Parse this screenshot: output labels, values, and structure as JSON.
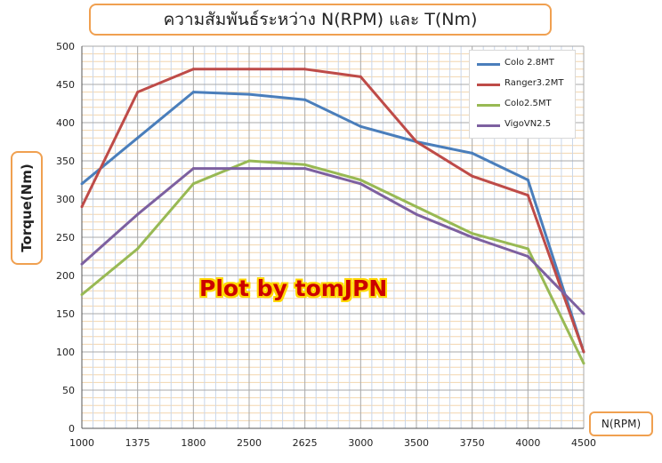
{
  "chart_data": {
    "type": "line",
    "title": "ความสัมพันธ์ระหว่าง  N(RPM)    และ  T(Nm)",
    "xlabel": "N(RPM)",
    "ylabel": "Torque(Nm)",
    "categories": [
      "1000",
      "1375",
      "1800",
      "2500",
      "2625",
      "3000",
      "3500",
      "3750",
      "4000",
      "4500"
    ],
    "ylim": [
      0,
      500
    ],
    "yticks": [
      0,
      50,
      100,
      150,
      200,
      250,
      300,
      350,
      400,
      450,
      500
    ],
    "grid": true,
    "legend_position": "top-right",
    "series": [
      {
        "name": "Colo 2.8MT",
        "color": "#4a7ebb",
        "values": [
          320,
          380,
          440,
          437,
          430,
          395,
          375,
          360,
          325,
          100
        ]
      },
      {
        "name": "Ranger3.2MT",
        "color": "#be4b48",
        "values": [
          290,
          440,
          470,
          470,
          470,
          460,
          375,
          330,
          305,
          100
        ]
      },
      {
        "name": "Colo2.5MT",
        "color": "#98b954",
        "values": [
          175,
          235,
          320,
          350,
          345,
          325,
          290,
          255,
          235,
          85
        ]
      },
      {
        "name": "VigoVN2.5",
        "color": "#7d60a0",
        "values": [
          215,
          280,
          340,
          340,
          340,
          320,
          280,
          250,
          225,
          150
        ]
      }
    ],
    "annotation": "Plot by tomJPN"
  }
}
